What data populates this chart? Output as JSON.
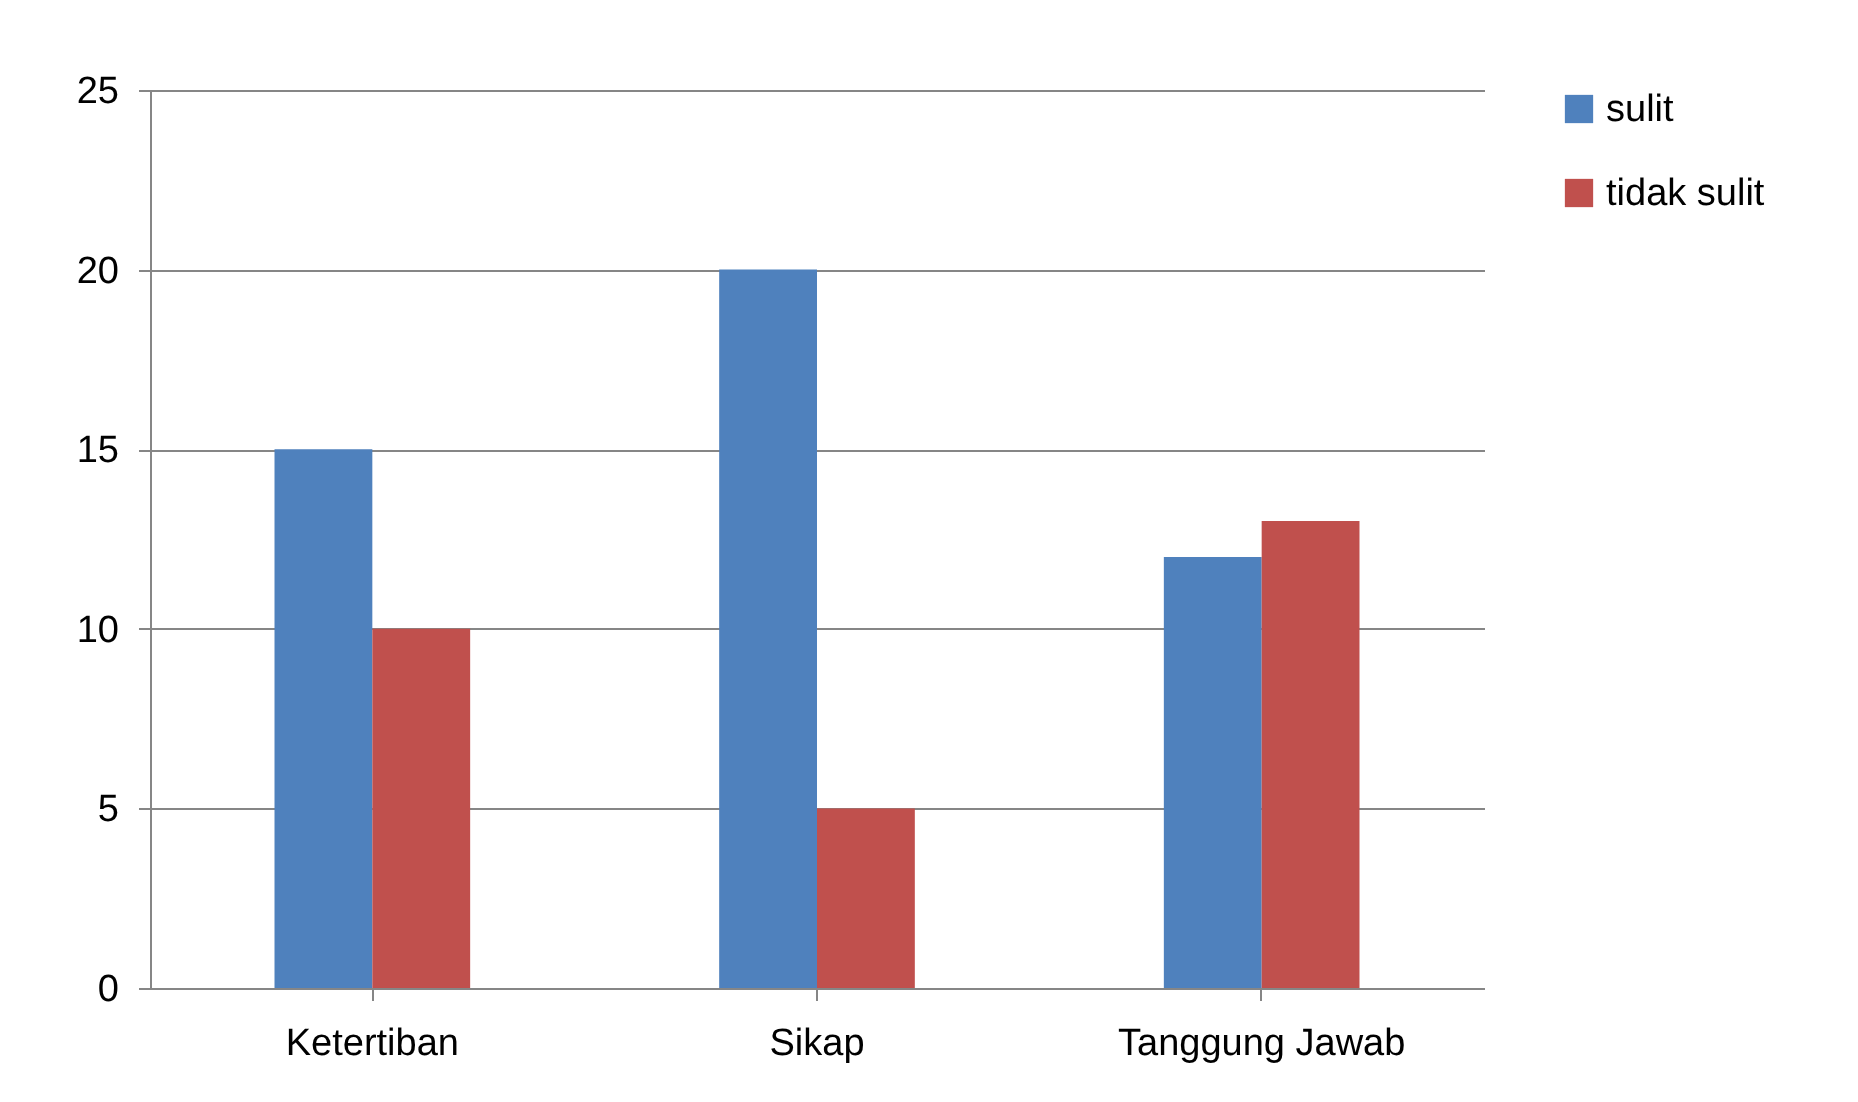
{
  "chart_data": {
    "type": "bar",
    "categories": [
      "Ketertiban",
      "Sikap",
      "Tanggung Jawab"
    ],
    "series": [
      {
        "name": "sulit",
        "color": "#4f81bd",
        "values": [
          15,
          20,
          12
        ]
      },
      {
        "name": "tidak sulit",
        "color": "#c0504d",
        "values": [
          10,
          5,
          13
        ]
      }
    ],
    "ylim": [
      0,
      25
    ],
    "yticks": [
      0,
      5,
      10,
      15,
      20,
      25
    ],
    "grid": "y",
    "legend": "right"
  }
}
